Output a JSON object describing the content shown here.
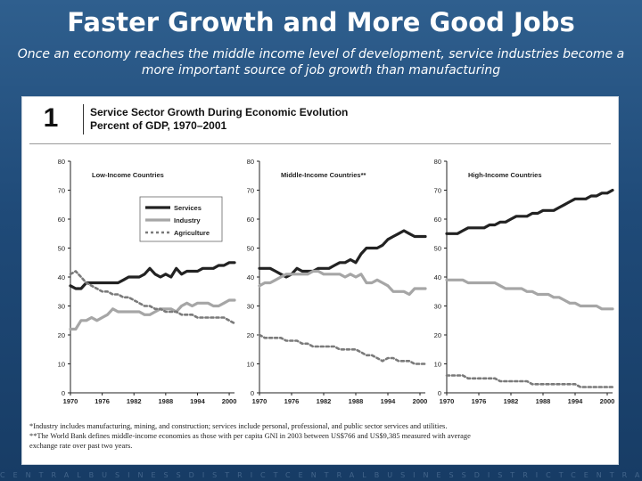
{
  "slide": {
    "title": "Faster Growth and More Good Jobs",
    "subtitle": "Once an economy reaches the middle income level of development, service industries become a more important source of job growth than manufacturing",
    "footer_text": "CENTRALBUSINESSDISTRICTCENTRALBUSINESSDISTRICTCENTRA"
  },
  "figure": {
    "number": "1",
    "title_line1": "Service Sector Growth During Economic Evolution",
    "title_line2": "Percent of GDP, 1970–2001"
  },
  "footnotes": {
    "note1": "*Industry includes manufacturing, mining, and construction; services include personal, professional, and public sector services and utilities.",
    "note2": "**The World Bank defines middle-income economies as those with per capita GNI in 2003 between US$766 and US$9,385  measured with average",
    "note3": "exchange rate over past two years."
  },
  "colors": {
    "services": "#222222",
    "industry": "#a6a6a6",
    "agriculture": "#7a7a7a",
    "background_top": "#2f5f8e",
    "background_bottom": "#173c65"
  },
  "chart_data": [
    {
      "type": "line",
      "title": "Low-Income Countries",
      "xlabel": "",
      "ylabel": "",
      "ylim": [
        0,
        80
      ],
      "xlim": [
        1970,
        2001
      ],
      "yticks": [
        "0",
        "10",
        "20",
        "30",
        "40",
        "50",
        "60",
        "70",
        "80"
      ],
      "xticks": [
        "1970",
        "1976",
        "1982",
        "1988",
        "1994",
        "2000"
      ],
      "legend": [
        "Services",
        "Industry",
        "Agriculture"
      ],
      "legend_position": "top-right",
      "x": [
        1970,
        1971,
        1972,
        1973,
        1974,
        1975,
        1976,
        1977,
        1978,
        1979,
        1980,
        1981,
        1982,
        1983,
        1984,
        1985,
        1986,
        1987,
        1988,
        1989,
        1990,
        1991,
        1992,
        1993,
        1994,
        1995,
        1996,
        1997,
        1998,
        1999,
        2000,
        2001
      ],
      "series": [
        {
          "name": "Services",
          "values": [
            37,
            36,
            36,
            38,
            38,
            38,
            38,
            38,
            38,
            38,
            39,
            40,
            40,
            40,
            41,
            43,
            41,
            40,
            41,
            40,
            43,
            41,
            42,
            42,
            42,
            43,
            43,
            43,
            44,
            44,
            45,
            45
          ]
        },
        {
          "name": "Industry",
          "values": [
            22,
            22,
            25,
            25,
            26,
            25,
            26,
            27,
            29,
            28,
            28,
            28,
            28,
            28,
            27,
            27,
            28,
            29,
            29,
            29,
            28,
            30,
            31,
            30,
            31,
            31,
            31,
            30,
            30,
            31,
            32,
            32
          ]
        },
        {
          "name": "Agriculture",
          "values": [
            41,
            42,
            40,
            38,
            37,
            36,
            35,
            35,
            34,
            34,
            33,
            33,
            32,
            31,
            30,
            30,
            29,
            29,
            28,
            28,
            28,
            27,
            27,
            27,
            26,
            26,
            26,
            26,
            26,
            26,
            25,
            24
          ]
        }
      ]
    },
    {
      "type": "line",
      "title": "Middle-Income Countries**",
      "xlabel": "",
      "ylabel": "",
      "ylim": [
        0,
        80
      ],
      "xlim": [
        1970,
        2001
      ],
      "yticks": [
        "0",
        "10",
        "20",
        "30",
        "40",
        "50",
        "60",
        "70",
        "80"
      ],
      "xticks": [
        "1970",
        "1976",
        "1982",
        "1988",
        "1994",
        "2000"
      ],
      "x": [
        1970,
        1971,
        1972,
        1973,
        1974,
        1975,
        1976,
        1977,
        1978,
        1979,
        1980,
        1981,
        1982,
        1983,
        1984,
        1985,
        1986,
        1987,
        1988,
        1989,
        1990,
        1991,
        1992,
        1993,
        1994,
        1995,
        1996,
        1997,
        1998,
        1999,
        2000,
        2001
      ],
      "series": [
        {
          "name": "Services",
          "values": [
            43,
            43,
            43,
            42,
            41,
            40,
            41,
            43,
            42,
            42,
            42,
            43,
            43,
            43,
            44,
            45,
            45,
            46,
            45,
            48,
            50,
            50,
            50,
            51,
            53,
            54,
            55,
            56,
            55,
            54,
            54,
            54
          ]
        },
        {
          "name": "Industry",
          "values": [
            37,
            38,
            38,
            39,
            40,
            41,
            41,
            41,
            41,
            41,
            42,
            42,
            41,
            41,
            41,
            41,
            40,
            41,
            40,
            41,
            38,
            38,
            39,
            38,
            37,
            35,
            35,
            35,
            34,
            36,
            36,
            36
          ]
        },
        {
          "name": "Agriculture",
          "values": [
            20,
            19,
            19,
            19,
            19,
            18,
            18,
            18,
            17,
            17,
            16,
            16,
            16,
            16,
            16,
            15,
            15,
            15,
            15,
            14,
            13,
            13,
            12,
            11,
            12,
            12,
            11,
            11,
            11,
            10,
            10,
            10
          ]
        }
      ]
    },
    {
      "type": "line",
      "title": "High-Income Countries",
      "xlabel": "",
      "ylabel": "",
      "ylim": [
        0,
        80
      ],
      "xlim": [
        1970,
        2001
      ],
      "yticks": [
        "0",
        "10",
        "20",
        "30",
        "40",
        "50",
        "60",
        "70",
        "80"
      ],
      "xticks": [
        "1970",
        "1976",
        "1982",
        "1988",
        "1994",
        "2000"
      ],
      "x": [
        1970,
        1971,
        1972,
        1973,
        1974,
        1975,
        1976,
        1977,
        1978,
        1979,
        1980,
        1981,
        1982,
        1983,
        1984,
        1985,
        1986,
        1987,
        1988,
        1989,
        1990,
        1991,
        1992,
        1993,
        1994,
        1995,
        1996,
        1997,
        1998,
        1999,
        2000,
        2001
      ],
      "series": [
        {
          "name": "Services",
          "values": [
            55,
            55,
            55,
            56,
            57,
            57,
            57,
            57,
            58,
            58,
            59,
            59,
            60,
            61,
            61,
            61,
            62,
            62,
            63,
            63,
            63,
            64,
            65,
            66,
            67,
            67,
            67,
            68,
            68,
            69,
            69,
            70
          ]
        },
        {
          "name": "Industry",
          "values": [
            39,
            39,
            39,
            39,
            38,
            38,
            38,
            38,
            38,
            38,
            37,
            36,
            36,
            36,
            36,
            35,
            35,
            34,
            34,
            34,
            33,
            33,
            32,
            31,
            31,
            30,
            30,
            30,
            30,
            29,
            29,
            29
          ]
        },
        {
          "name": "Agriculture",
          "values": [
            6,
            6,
            6,
            6,
            5,
            5,
            5,
            5,
            5,
            5,
            4,
            4,
            4,
            4,
            4,
            4,
            3,
            3,
            3,
            3,
            3,
            3,
            3,
            3,
            3,
            2,
            2,
            2,
            2,
            2,
            2,
            2
          ]
        }
      ]
    }
  ]
}
